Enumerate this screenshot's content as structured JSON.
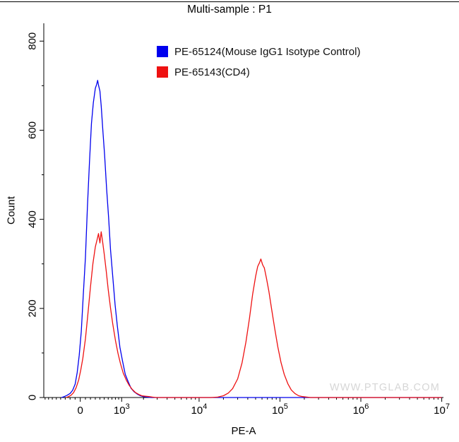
{
  "chart_data": {
    "type": "line",
    "title": "Multi-sample : P1",
    "xlabel": "PE-A",
    "ylabel": "Count",
    "watermark": "WWW.PTGLAB.COM",
    "x_axis": {
      "scale": "biexponential",
      "cofactor": 680,
      "min": -840,
      "max": 10500000,
      "ticks": [
        {
          "value": 0,
          "label": "0"
        },
        {
          "value": 1000,
          "base": "10",
          "exp": "3"
        },
        {
          "value": 10000,
          "base": "10",
          "exp": "4"
        },
        {
          "value": 100000,
          "base": "10",
          "exp": "5"
        },
        {
          "value": 1000000,
          "base": "10",
          "exp": "6"
        },
        {
          "value": 10000000,
          "base": "10",
          "exp": "7"
        }
      ]
    },
    "y_axis": {
      "min": 0,
      "max": 840,
      "ticks": [
        0,
        200,
        400,
        600,
        800
      ],
      "minor_step": 100
    },
    "legend_position": "top-right",
    "series": [
      {
        "name": "PE-65124(Mouse IgG1 Isotype Control)",
        "color": "#0000ee",
        "peak_count": 712,
        "points": [
          [
            -380,
            0
          ],
          [
            -320,
            2
          ],
          [
            -260,
            5
          ],
          [
            -200,
            9
          ],
          [
            -150,
            16
          ],
          [
            -100,
            30
          ],
          [
            -60,
            56
          ],
          [
            -20,
            95
          ],
          [
            20,
            148
          ],
          [
            60,
            232
          ],
          [
            100,
            315
          ],
          [
            140,
            428
          ],
          [
            180,
            528
          ],
          [
            220,
            615
          ],
          [
            260,
            662
          ],
          [
            300,
            694
          ],
          [
            330,
            703
          ],
          [
            350,
            712
          ],
          [
            370,
            701
          ],
          [
            400,
            688
          ],
          [
            430,
            655
          ],
          [
            470,
            596
          ],
          [
            510,
            545
          ],
          [
            560,
            468
          ],
          [
            610,
            404
          ],
          [
            660,
            332
          ],
          [
            720,
            273
          ],
          [
            790,
            208
          ],
          [
            860,
            160
          ],
          [
            940,
            113
          ],
          [
            1030,
            82
          ],
          [
            1130,
            52
          ],
          [
            1240,
            36
          ],
          [
            1360,
            21
          ],
          [
            1500,
            13
          ],
          [
            1650,
            8
          ],
          [
            1820,
            4
          ],
          [
            2000,
            2
          ],
          [
            2200,
            1
          ],
          [
            2500,
            0
          ],
          [
            10000000,
            0
          ]
        ]
      },
      {
        "name": "PE-65143(CD4)",
        "color": "#ee1111",
        "peak_count": 372,
        "points": [
          [
            -280,
            0
          ],
          [
            -230,
            2
          ],
          [
            -180,
            5
          ],
          [
            -130,
            11
          ],
          [
            -80,
            22
          ],
          [
            -30,
            40
          ],
          [
            10,
            62
          ],
          [
            50,
            88
          ],
          [
            100,
            132
          ],
          [
            150,
            188
          ],
          [
            200,
            248
          ],
          [
            250,
            301
          ],
          [
            300,
            338
          ],
          [
            340,
            355
          ],
          [
            370,
            368
          ],
          [
            400,
            347
          ],
          [
            430,
            372
          ],
          [
            460,
            351
          ],
          [
            500,
            322
          ],
          [
            550,
            283
          ],
          [
            600,
            243
          ],
          [
            660,
            201
          ],
          [
            720,
            166
          ],
          [
            800,
            128
          ],
          [
            880,
            99
          ],
          [
            960,
            76
          ],
          [
            1060,
            54
          ],
          [
            1170,
            39
          ],
          [
            1290,
            27
          ],
          [
            1420,
            18
          ],
          [
            1570,
            11
          ],
          [
            1730,
            7
          ],
          [
            1900,
            4
          ],
          [
            2100,
            3
          ],
          [
            2350,
            2
          ],
          [
            2600,
            1
          ],
          [
            2900,
            0
          ],
          [
            14000,
            0
          ],
          [
            17000,
            1
          ],
          [
            20000,
            4
          ],
          [
            23000,
            10
          ],
          [
            26000,
            20
          ],
          [
            30000,
            42
          ],
          [
            34000,
            78
          ],
          [
            38000,
            125
          ],
          [
            42000,
            178
          ],
          [
            46000,
            232
          ],
          [
            50000,
            272
          ],
          [
            53000,
            294
          ],
          [
            56000,
            303
          ],
          [
            58000,
            311
          ],
          [
            61000,
            298
          ],
          [
            64000,
            291
          ],
          [
            68000,
            268
          ],
          [
            73000,
            238
          ],
          [
            79000,
            198
          ],
          [
            86000,
            155
          ],
          [
            94000,
            114
          ],
          [
            103000,
            79
          ],
          [
            113000,
            52
          ],
          [
            125000,
            31
          ],
          [
            138000,
            17
          ],
          [
            153000,
            9
          ],
          [
            170000,
            4
          ],
          [
            190000,
            2
          ],
          [
            215000,
            1
          ],
          [
            240000,
            0
          ],
          [
            10000000,
            0
          ]
        ]
      }
    ]
  }
}
